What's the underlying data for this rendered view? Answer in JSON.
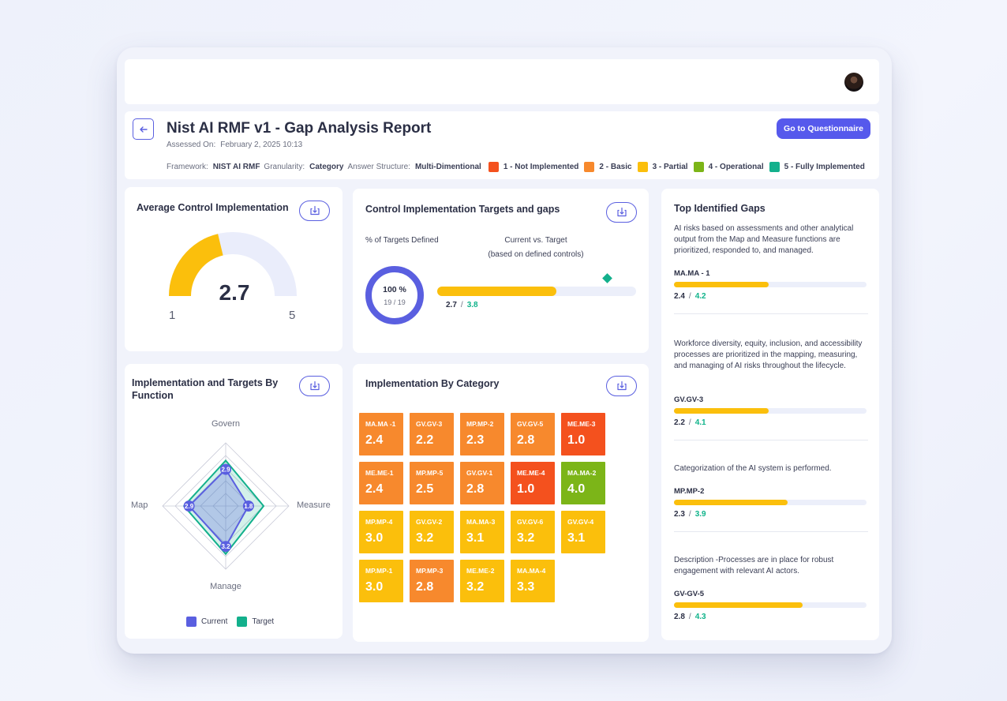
{
  "header": {
    "title": "Nist AI RMF v1 - Gap Analysis Report",
    "assessed_label": "Assessed On:",
    "assessed_value": "February 2, 2025 10:13",
    "questionnaire_button": "Go to Questionnaire",
    "framework_label": "Framework:",
    "framework_value": "NIST AI RMF",
    "granularity_label": "Granularity:",
    "granularity_value": "Category",
    "answer_label": "Answer Structure:",
    "answer_value": "Multi-Dimentional",
    "legend": [
      {
        "label": "1 - Not Implemented",
        "color": "#f4511e"
      },
      {
        "label": "2 - Basic",
        "color": "#f7892d"
      },
      {
        "label": "3 - Partial",
        "color": "#fbbf0c"
      },
      {
        "label": "4 - Operational",
        "color": "#7cb518"
      },
      {
        "label": "5 - Fully Implemented",
        "color": "#13b08c"
      }
    ]
  },
  "avg": {
    "title": "Average Control Implementation",
    "value": "2.7",
    "min": "1",
    "max": "5",
    "fraction": 0.425
  },
  "targets": {
    "title": "Control Implementation Targets and gaps",
    "pct_label": "% of Targets Defined",
    "cvt_label": "Current vs. Target",
    "cvt_sub": "(based on defined controls)",
    "donut_pct": "100 %",
    "donut_count": "19",
    "donut_total": "19",
    "donut_sep": "/",
    "current": "2.7",
    "target": "3.8",
    "sep": "/",
    "current_fraction": 0.6,
    "target_fraction": 0.855
  },
  "radar": {
    "title": "Implementation and Targets By Function",
    "axes": [
      "Govern",
      "Measure",
      "Manage",
      "Map"
    ],
    "current": [
      2.9,
      1.8,
      3.2,
      2.9
    ],
    "target": [
      3.6,
      3.0,
      3.8,
      3.3
    ],
    "current_labels": [
      "2.9",
      "1.8",
      "3.2",
      "2.9"
    ],
    "legend_current": "Current",
    "legend_target": "Target",
    "current_color": "#5a5fe0",
    "target_color": "#13b08c"
  },
  "category": {
    "title": "Implementation By Category",
    "tiles": [
      {
        "code": "MA.MA -1",
        "value": "2.4",
        "color": "#f7892d"
      },
      {
        "code": "GV.GV-3",
        "value": "2.2",
        "color": "#f7892d"
      },
      {
        "code": "MP.MP-2",
        "value": "2.3",
        "color": "#f7892d"
      },
      {
        "code": "GV.GV-5",
        "value": "2.8",
        "color": "#f7892d"
      },
      {
        "code": "ME.ME-3",
        "value": "1.0",
        "color": "#f4511e"
      },
      {
        "code": "ME.ME-1",
        "value": "2.4",
        "color": "#f7892d"
      },
      {
        "code": "MP.MP-5",
        "value": "2.5",
        "color": "#f7892d"
      },
      {
        "code": "GV.GV-1",
        "value": "2.8",
        "color": "#f7892d"
      },
      {
        "code": "ME.ME-4",
        "value": "1.0",
        "color": "#f4511e"
      },
      {
        "code": "MA.MA-2",
        "value": "4.0",
        "color": "#7cb518"
      },
      {
        "code": "MP.MP-4",
        "value": "3.0",
        "color": "#fbbf0c"
      },
      {
        "code": "GV.GV-2",
        "value": "3.2",
        "color": "#fbbf0c"
      },
      {
        "code": "MA.MA-3",
        "value": "3.1",
        "color": "#fbbf0c"
      },
      {
        "code": "GV.GV-6",
        "value": "3.2",
        "color": "#fbbf0c"
      },
      {
        "code": "GV.GV-4",
        "value": "3.1",
        "color": "#fbbf0c"
      },
      {
        "code": "MP.MP-1",
        "value": "3.0",
        "color": "#fbbf0c"
      },
      {
        "code": "MP.MP-3",
        "value": "2.8",
        "color": "#f7892d"
      },
      {
        "code": "ME.ME-2",
        "value": "3.2",
        "color": "#fbbf0c"
      },
      {
        "code": "MA.MA-4",
        "value": "3.3",
        "color": "#fbbf0c"
      }
    ]
  },
  "gaps": {
    "title": "Top Identified Gaps",
    "items": [
      {
        "desc": " AI risks based on assessments and other analytical output from the Map and Measure functions are prioritized, responded to, and managed.",
        "code": "MA.MA - 1",
        "current": "2.4",
        "target": "4.2",
        "fraction": 0.49
      },
      {
        "desc": "Workforce diversity, equity, inclusion, and accessibility processes are prioritized in the mapping, measuring, and managing of AI risks throughout the lifecycle.",
        "code": "GV.GV-3",
        "current": "2.2",
        "target": "4.1",
        "fraction": 0.49
      },
      {
        "desc": "Categorization of the AI system is performed.",
        "code": "MP.MP-2",
        "current": "2.3",
        "target": "3.9",
        "fraction": 0.59
      },
      {
        "desc": "Description -Processes are in place for robust engagement with relevant AI actors.",
        "code": "GV-GV-5",
        "current": "2.8",
        "target": "4.3",
        "fraction": 0.67
      }
    ],
    "sep": "/"
  }
}
